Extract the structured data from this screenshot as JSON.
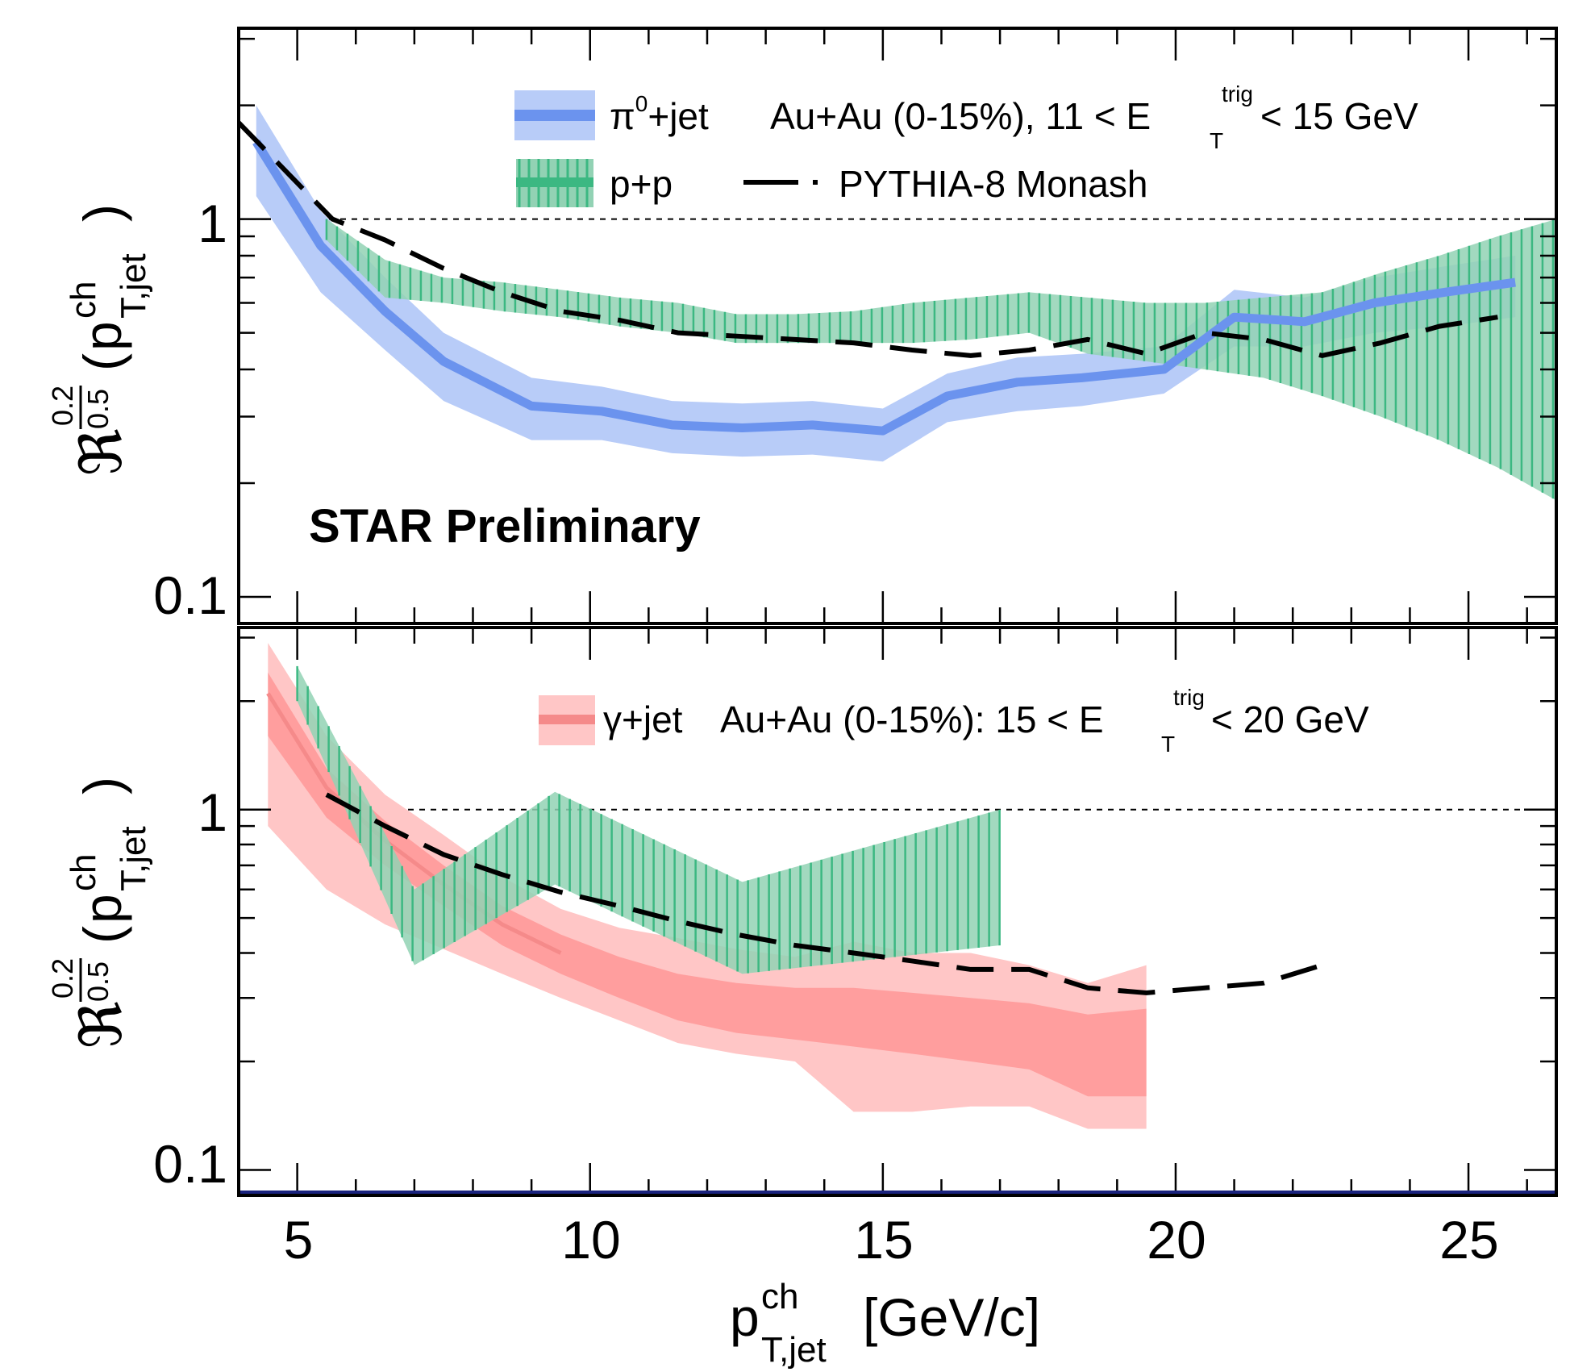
{
  "figure": {
    "x_label_main": "p",
    "x_label_sup": "ch",
    "x_label_sub": "T,jet",
    "x_label_unit": "[GeV/c]",
    "y_label_symbol": "ℜ",
    "y_label_frac_num": "0.2",
    "y_label_frac_den": "0.5",
    "y_label_p": "p",
    "y_label_sup": "ch",
    "y_label_sub": "T,jet",
    "y_label_open": "(",
    "y_label_close": ")",
    "colors": {
      "pi0_band_light": "#b8ccf8",
      "pi0_line": "#6b93ee",
      "pp_fill": "#92d2b4",
      "pp_hatch": "#3cb882",
      "pythia_line": "#000000",
      "gamma_band_light": "#ffc6c6",
      "gamma_band_dark": "#ff9494",
      "gamma_line": "#f58a8a",
      "axis_bottom_line": "#1a237e"
    }
  },
  "chart_data": [
    {
      "type": "area",
      "panel": "top",
      "xlim": [
        4,
        26.5
      ],
      "ylim": [
        0.085,
        3.2
      ],
      "yscale": "log",
      "xticks": [
        5,
        10,
        15,
        20,
        25
      ],
      "xtick_labels": [
        "5",
        "10",
        "15",
        "20",
        "25"
      ],
      "yticks": [
        0.1,
        1
      ],
      "ytick_labels": [
        "0.1",
        "1"
      ],
      "reference_line": 1,
      "annotation": "STAR Preliminary",
      "legend": {
        "pi0_entry": "π",
        "pi0_sup": "0",
        "pi0_rest": "+jet",
        "pi0_desc": "Au+Au (0-15%), 11 < E",
        "pi0_desc_sup": "trig",
        "pi0_desc_sub": "T",
        "pi0_desc_end": "< 15 GeV",
        "pp_entry": "p+p",
        "pythia_entry": "PYTHIA-8 Monash"
      },
      "series": [
        {
          "name": "pi0+jet Au+Au",
          "x": [
            4.3,
            5.4,
            6.5,
            7.5,
            9.0,
            10.2,
            11.4,
            12.6,
            13.8,
            15.0,
            16.1,
            17.3,
            18.4,
            19.8,
            21.0,
            22.2,
            23.4,
            24.6,
            25.8
          ],
          "y": [
            1.6,
            0.85,
            0.57,
            0.42,
            0.32,
            0.31,
            0.285,
            0.28,
            0.285,
            0.275,
            0.34,
            0.37,
            0.38,
            0.4,
            0.55,
            0.535,
            0.6,
            0.64,
            0.68
          ],
          "y_low": [
            1.15,
            0.64,
            0.45,
            0.33,
            0.26,
            0.26,
            0.24,
            0.235,
            0.238,
            0.228,
            0.29,
            0.31,
            0.32,
            0.345,
            0.46,
            0.46,
            0.5,
            0.52,
            0.55
          ],
          "y_high": [
            2.0,
            1.05,
            0.7,
            0.5,
            0.38,
            0.36,
            0.33,
            0.325,
            0.33,
            0.315,
            0.39,
            0.43,
            0.44,
            0.46,
            0.65,
            0.62,
            0.7,
            0.75,
            0.8
          ]
        },
        {
          "name": "p+p",
          "x": [
            5.5,
            6.5,
            7.5,
            8.5,
            9.5,
            10.5,
            11.5,
            12.5,
            13.5,
            14.5,
            15.5,
            16.5,
            17.5,
            18.5,
            19.5,
            20.5,
            21.5,
            22.5,
            23.5,
            24.5,
            25.5,
            26.5
          ],
          "y_low": [
            0.88,
            0.62,
            0.6,
            0.57,
            0.55,
            0.52,
            0.5,
            0.47,
            0.47,
            0.47,
            0.47,
            0.48,
            0.5,
            0.44,
            0.42,
            0.4,
            0.38,
            0.34,
            0.3,
            0.26,
            0.22,
            0.18
          ],
          "y_high": [
            1.0,
            0.78,
            0.7,
            0.68,
            0.65,
            0.62,
            0.6,
            0.56,
            0.56,
            0.57,
            0.6,
            0.62,
            0.64,
            0.62,
            0.6,
            0.6,
            0.62,
            0.64,
            0.72,
            0.8,
            0.9,
            1.0
          ]
        },
        {
          "name": "PYTHIA-8 Monash",
          "x": [
            4.0,
            5.6,
            6.5,
            7.5,
            8.5,
            9.5,
            10.5,
            11.5,
            12.5,
            13.5,
            14.5,
            15.5,
            16.5,
            17.5,
            18.5,
            19.5,
            20.5,
            21.5,
            22.5,
            23.5,
            24.5,
            25.5
          ],
          "y": [
            1.8,
            1.0,
            0.88,
            0.74,
            0.64,
            0.57,
            0.54,
            0.5,
            0.49,
            0.48,
            0.47,
            0.45,
            0.435,
            0.45,
            0.48,
            0.44,
            0.5,
            0.48,
            0.435,
            0.47,
            0.52,
            0.55
          ]
        }
      ]
    },
    {
      "type": "area",
      "panel": "bottom",
      "xlim": [
        4,
        26.5
      ],
      "ylim": [
        0.085,
        3.2
      ],
      "yscale": "log",
      "xticks": [
        5,
        10,
        15,
        20,
        25
      ],
      "xtick_labels": [
        "5",
        "10",
        "15",
        "20",
        "25"
      ],
      "yticks": [
        0.1,
        1
      ],
      "ytick_labels": [
        "0.1",
        "1"
      ],
      "reference_line": 1,
      "legend": {
        "gamma_entry": "γ+jet",
        "gamma_desc": "Au+Au (0-15%): 15 < E",
        "gamma_desc_sup": "trig",
        "gamma_desc_sub": "T",
        "gamma_desc_end": "< 20 GeV"
      },
      "series": [
        {
          "name": "gamma+jet Au+Au",
          "x": [
            4.5,
            5.5,
            6.5,
            7.5,
            8.5,
            9.5,
            10.5,
            11.5,
            12.5,
            13.5,
            14.5,
            15.5,
            16.5,
            17.5,
            18.5,
            19.5
          ],
          "y": [
            2.1,
            1.15,
            0.82,
            0.62,
            0.48,
            0.4,
            0.345,
            0.305,
            0.29,
            0.27,
            0.27,
            0.26,
            0.25,
            0.24,
            0.22,
            0.2
          ],
          "y_low_sys": [
            0.9,
            0.6,
            0.48,
            0.41,
            0.35,
            0.3,
            0.26,
            0.225,
            0.21,
            0.2,
            0.145,
            0.145,
            0.15,
            0.15,
            0.13,
            0.13
          ],
          "y_high_sys": [
            2.9,
            1.6,
            1.1,
            0.85,
            0.65,
            0.53,
            0.47,
            0.44,
            0.41,
            0.39,
            0.43,
            0.4,
            0.4,
            0.37,
            0.33,
            0.37
          ],
          "y_low_stat": [
            1.6,
            0.95,
            0.7,
            0.54,
            0.42,
            0.35,
            0.3,
            0.26,
            0.24,
            0.23,
            0.22,
            0.21,
            0.2,
            0.19,
            0.16,
            0.16
          ],
          "y_high_stat": [
            2.4,
            1.3,
            0.93,
            0.7,
            0.54,
            0.45,
            0.39,
            0.35,
            0.33,
            0.32,
            0.32,
            0.31,
            0.3,
            0.29,
            0.27,
            0.28
          ]
        },
        {
          "name": "p+p",
          "x": [
            5.0,
            7.0,
            9.4,
            12.6,
            17.0
          ],
          "y_low": [
            2.0,
            0.37,
            0.62,
            0.35,
            0.42
          ],
          "y_high": [
            2.5,
            0.6,
            1.12,
            0.63,
            1.0
          ]
        },
        {
          "name": "PYTHIA-8",
          "x": [
            5.5,
            6.5,
            7.5,
            8.5,
            9.5,
            10.5,
            11.5,
            12.5,
            13.5,
            14.5,
            15.5,
            16.5,
            17.5,
            18.5,
            19.5,
            20.5,
            21.5,
            22.5
          ],
          "y": [
            1.1,
            0.9,
            0.75,
            0.66,
            0.59,
            0.54,
            0.49,
            0.45,
            0.42,
            0.4,
            0.38,
            0.36,
            0.36,
            0.32,
            0.31,
            0.32,
            0.33,
            0.37
          ]
        }
      ]
    }
  ]
}
